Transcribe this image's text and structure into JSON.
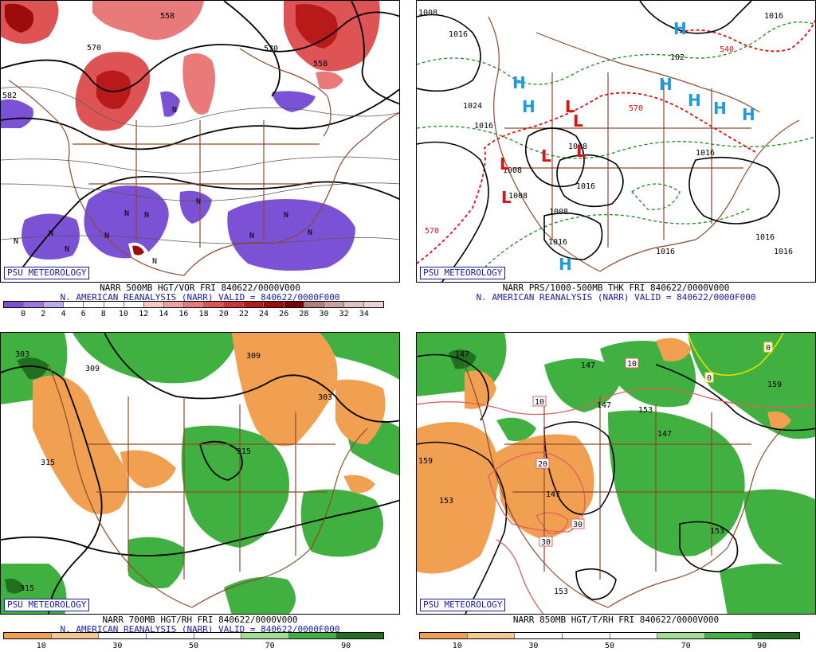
{
  "panels": {
    "p1": {
      "badge": "PSU METEOROLOGY",
      "caption1": "NARR 500MB HGT/VOR FRI 840622/0000V000",
      "caption2": "N. AMERICAN REANALYSIS (NARR) VALID = 840622/0000F000",
      "colorbar": {
        "labels": [
          "0",
          "2",
          "4",
          "6",
          "8",
          "10",
          "12",
          "14",
          "16",
          "18",
          "20",
          "22",
          "24",
          "26",
          "28",
          "30",
          "32",
          "34"
        ],
        "colors": [
          "#7b52d6",
          "#9b78e0",
          "#c0aaee",
          "#ffffff",
          "#ffffff",
          "#ffffff",
          "#ffffff",
          "#f7c6c6",
          "#f0a0a0",
          "#e87a7a",
          "#de5454",
          "#cf3434",
          "#b81a1a",
          "#9c0c0c",
          "#7d0000",
          "#b08080",
          "#c8a0a0",
          "#e0c0c0",
          "#f0d0d0"
        ]
      },
      "contour_labels": [
        "558",
        "570",
        "558",
        "582",
        "570"
      ],
      "vort_marks": [
        "N",
        "N",
        "N",
        "N",
        "N",
        "N",
        "N",
        "N",
        "N",
        "N",
        "N",
        "N"
      ]
    },
    "p2": {
      "badge": "PSU METEOROLOGY",
      "caption1": "NARR PRS/1000-500MB THK FRI 840622/0000V000",
      "caption2": "N. AMERICAN REANALYSIS (NARR) VALID = 840622/0000F000",
      "isobar_labels": [
        "1008",
        "1016",
        "1024",
        "1016",
        "1016",
        "1008",
        "1008",
        "1008",
        "1008",
        "1016",
        "1016",
        "1016",
        "1016",
        "1016",
        "1016",
        "102"
      ],
      "thickness_labels": [
        "540",
        "570",
        "570"
      ],
      "highs": [
        "H",
        "H",
        "H",
        "H",
        "H",
        "H",
        "H",
        "H"
      ],
      "lows": [
        "L",
        "L",
        "L",
        "L",
        "L",
        "L"
      ]
    },
    "p3": {
      "badge": "PSU METEOROLOGY",
      "caption1": "NARR 700MB HGT/RH FRI 840622/0000V000",
      "caption2": "N. AMERICAN REANALYSIS (NARR) VALID = 840622/0000F000",
      "colorbar": {
        "labels": [
          "10",
          "30",
          "50",
          "70",
          "90"
        ],
        "colors": [
          "#f0a050",
          "#f8c890",
          "#ffffff",
          "#ffffff",
          "#ffffff",
          "#a0e090",
          "#40b040",
          "#207020"
        ]
      },
      "contour_labels": [
        "303",
        "309",
        "309",
        "303",
        "315",
        "315",
        "315"
      ]
    },
    "p4": {
      "badge": "PSU METEOROLOGY",
      "caption1": "NARR 850MB HGT/T/RH FRI 840622/0000V000",
      "colorbar": {
        "labels": [
          "10",
          "30",
          "50",
          "70",
          "90"
        ],
        "colors": [
          "#f0a050",
          "#f8c890",
          "#ffffff",
          "#ffffff",
          "#ffffff",
          "#a0e090",
          "#40b040",
          "#207020"
        ]
      },
      "height_labels": [
        "147",
        "147",
        "147",
        "153",
        "159",
        "159",
        "153",
        "147",
        "153",
        "147",
        "153"
      ],
      "temp_labels": [
        "10",
        "10",
        "20",
        "30",
        "30",
        "0",
        "0"
      ]
    }
  }
}
